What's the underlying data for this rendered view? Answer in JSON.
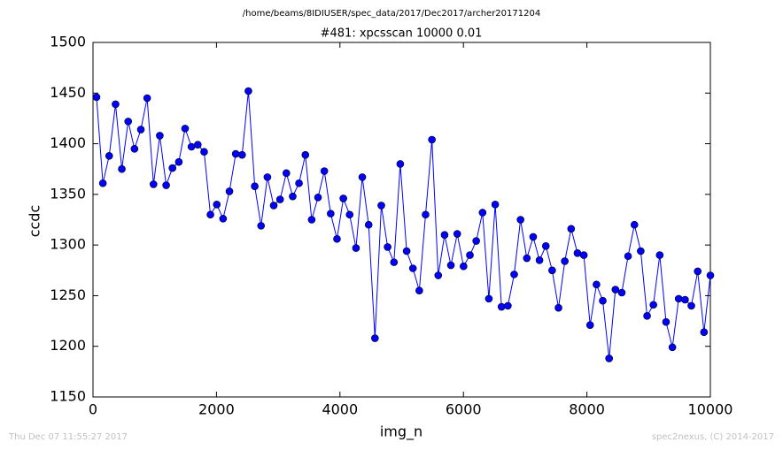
{
  "chart_data": {
    "type": "line",
    "suptitle": "/home/beams/8IDIUSER/spec_data/2017/Dec2017/archer20171204",
    "title": "#481: xpcsscan 10000 0.01",
    "xlabel": "img_n",
    "ylabel": "ccdc",
    "footer_left": "Thu Dec 07 11:55:27 2017",
    "footer_right": "spec2nexus, (C) 2014-2017",
    "xlim": [
      0,
      10000
    ],
    "xticks": [
      0,
      2000,
      4000,
      6000,
      8000,
      10000
    ],
    "ylim": [
      1150,
      1500
    ],
    "yticks": [
      1150,
      1200,
      1250,
      1300,
      1350,
      1400,
      1450,
      1500
    ],
    "x": [
      57,
      160,
      262,
      365,
      467,
      570,
      672,
      775,
      877,
      980,
      1082,
      1185,
      1287,
      1390,
      1492,
      1595,
      1697,
      1800,
      1902,
      2005,
      2107,
      2210,
      2312,
      2415,
      2517,
      2620,
      2722,
      2825,
      2927,
      3030,
      3132,
      3235,
      3337,
      3440,
      3542,
      3645,
      3747,
      3850,
      3952,
      4055,
      4157,
      4260,
      4362,
      4465,
      4567,
      4670,
      4772,
      4875,
      4977,
      5080,
      5182,
      5285,
      5387,
      5490,
      5592,
      5695,
      5797,
      5900,
      6002,
      6105,
      6207,
      6310,
      6412,
      6515,
      6617,
      6720,
      6822,
      6925,
      7027,
      7130,
      7232,
      7335,
      7437,
      7540,
      7642,
      7745,
      7847,
      7950,
      8052,
      8155,
      8257,
      8360,
      8462,
      8565,
      8667,
      8770,
      8872,
      8975,
      9077,
      9180,
      9282,
      9385,
      9487,
      9590,
      9692,
      9795,
      9897,
      10000
    ],
    "series": [
      {
        "color": "#0000ff",
        "values": [
          1446,
          1361,
          1388,
          1439,
          1375,
          1422,
          1395,
          1414,
          1445,
          1360,
          1408,
          1359,
          1376,
          1382,
          1415,
          1397,
          1399,
          1392,
          1330,
          1340,
          1326,
          1353,
          1390,
          1389,
          1452,
          1358,
          1319,
          1367,
          1339,
          1345,
          1371,
          1348,
          1361,
          1389,
          1325,
          1347,
          1373,
          1331,
          1306,
          1346,
          1330,
          1297,
          1367,
          1320,
          1208,
          1339,
          1298,
          1283,
          1380,
          1294,
          1277,
          1255,
          1330,
          1404,
          1270,
          1310,
          1280,
          1311,
          1279,
          1290,
          1304,
          1332,
          1247,
          1340,
          1239,
          1240,
          1271,
          1325,
          1287,
          1308,
          1285,
          1299,
          1275,
          1238,
          1284,
          1316,
          1292,
          1290,
          1221,
          1261,
          1245,
          1188,
          1256,
          1253,
          1289,
          1320,
          1294,
          1230,
          1241,
          1290,
          1224,
          1199,
          1247,
          1246,
          1240,
          1274,
          1214,
          1270
        ]
      }
    ]
  }
}
